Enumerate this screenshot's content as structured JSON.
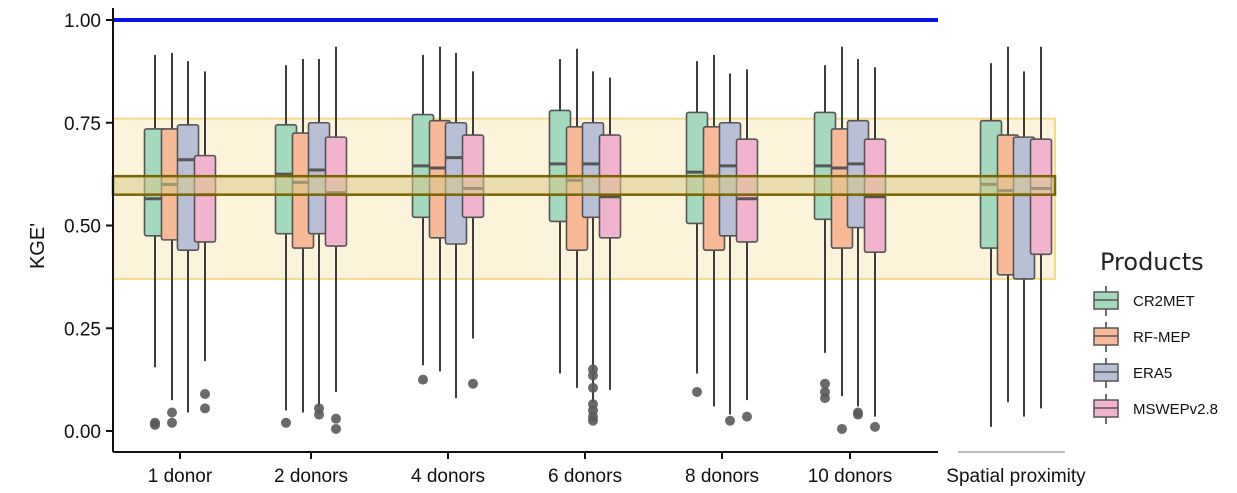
{
  "chart_data": {
    "type": "boxplot",
    "ylabel": "KGE'",
    "ylim": [
      0,
      1.05
    ],
    "yticks": [
      "0.00",
      "0.25",
      "0.50",
      "0.75",
      "1.00"
    ],
    "categories": [
      "1 donor",
      "2 donors",
      "4 donors",
      "6 donors",
      "8 donors",
      "10 donors",
      "Spatial proximity"
    ],
    "reference_line": {
      "value": 1.0,
      "color": "#0a14e6"
    },
    "bands": {
      "outer": {
        "low": 0.37,
        "high": 0.76,
        "fill": "#fcf3db",
        "stroke": "#f5d98a"
      },
      "inner": {
        "low": 0.575,
        "high": 0.62,
        "fill": "#d8c98c",
        "stroke": "#7a6500"
      }
    },
    "legend": {
      "title": "Products",
      "position": "right",
      "items": [
        {
          "label": "CR2MET",
          "color": "#a3d9bd"
        },
        {
          "label": "RF-MEP",
          "color": "#f8b996"
        },
        {
          "label": "ERA5",
          "color": "#b9bfd6"
        },
        {
          "label": "MSWEPv2.8",
          "color": "#f1b3cd"
        }
      ]
    },
    "series": [
      {
        "name": "CR2MET",
        "boxes": [
          {
            "whisker_low": 0.155,
            "q1": 0.475,
            "median": 0.565,
            "q3": 0.735,
            "whisker_high": 0.915,
            "outliers": [
              0.02,
              0.015
            ]
          },
          {
            "whisker_low": 0.05,
            "q1": 0.48,
            "median": 0.625,
            "q3": 0.745,
            "whisker_high": 0.89,
            "outliers": [
              0.02
            ]
          },
          {
            "whisker_low": 0.16,
            "q1": 0.52,
            "median": 0.645,
            "q3": 0.77,
            "whisker_high": 0.915,
            "outliers": [
              0.125
            ]
          },
          {
            "whisker_low": 0.14,
            "q1": 0.51,
            "median": 0.65,
            "q3": 0.78,
            "whisker_high": 0.905,
            "outliers": []
          },
          {
            "whisker_low": 0.14,
            "q1": 0.505,
            "median": 0.63,
            "q3": 0.775,
            "whisker_high": 0.9,
            "outliers": [
              0.095
            ]
          },
          {
            "whisker_low": 0.19,
            "q1": 0.515,
            "median": 0.645,
            "q3": 0.775,
            "whisker_high": 0.89,
            "outliers": [
              0.115,
              0.095,
              0.08
            ]
          },
          {
            "whisker_low": 0.01,
            "q1": 0.445,
            "median": 0.6,
            "q3": 0.755,
            "whisker_high": 0.895,
            "outliers": []
          }
        ]
      },
      {
        "name": "RF-MEP",
        "boxes": [
          {
            "whisker_low": 0.075,
            "q1": 0.465,
            "median": 0.6,
            "q3": 0.735,
            "whisker_high": 0.92,
            "outliers": [
              0.045,
              0.02
            ]
          },
          {
            "whisker_low": 0.045,
            "q1": 0.445,
            "median": 0.605,
            "q3": 0.725,
            "whisker_high": 0.905,
            "outliers": []
          },
          {
            "whisker_low": 0.145,
            "q1": 0.47,
            "median": 0.64,
            "q3": 0.755,
            "whisker_high": 0.935,
            "outliers": []
          },
          {
            "whisker_low": 0.105,
            "q1": 0.44,
            "median": 0.61,
            "q3": 0.74,
            "whisker_high": 0.93,
            "outliers": []
          },
          {
            "whisker_low": 0.06,
            "q1": 0.44,
            "median": 0.62,
            "q3": 0.74,
            "whisker_high": 0.915,
            "outliers": []
          },
          {
            "whisker_low": 0.085,
            "q1": 0.445,
            "median": 0.64,
            "q3": 0.735,
            "whisker_high": 0.935,
            "outliers": [
              0.005
            ]
          },
          {
            "whisker_low": 0.07,
            "q1": 0.38,
            "median": 0.585,
            "q3": 0.72,
            "whisker_high": 0.935,
            "outliers": []
          }
        ]
      },
      {
        "name": "ERA5",
        "boxes": [
          {
            "whisker_low": 0.045,
            "q1": 0.44,
            "median": 0.66,
            "q3": 0.745,
            "whisker_high": 0.9,
            "outliers": []
          },
          {
            "whisker_low": 0.06,
            "q1": 0.48,
            "median": 0.635,
            "q3": 0.75,
            "whisker_high": 0.905,
            "outliers": [
              0.055,
              0.04
            ]
          },
          {
            "whisker_low": 0.08,
            "q1": 0.455,
            "median": 0.665,
            "q3": 0.75,
            "whisker_high": 0.92,
            "outliers": []
          },
          {
            "whisker_low": 0.07,
            "q1": 0.52,
            "median": 0.65,
            "q3": 0.75,
            "whisker_high": 0.875,
            "outliers": [
              0.15,
              0.135,
              0.105,
              0.065,
              0.05,
              0.035,
              0.025
            ]
          },
          {
            "whisker_low": 0.04,
            "q1": 0.475,
            "median": 0.645,
            "q3": 0.75,
            "whisker_high": 0.87,
            "outliers": [
              0.025
            ]
          },
          {
            "whisker_low": 0.06,
            "q1": 0.495,
            "median": 0.65,
            "q3": 0.755,
            "whisker_high": 0.905,
            "outliers": [
              0.045,
              0.04
            ]
          },
          {
            "whisker_low": 0.035,
            "q1": 0.37,
            "median": 0.575,
            "q3": 0.715,
            "whisker_high": 0.875,
            "outliers": []
          }
        ]
      },
      {
        "name": "MSWEPv2.8",
        "boxes": [
          {
            "whisker_low": 0.17,
            "q1": 0.46,
            "median": 0.575,
            "q3": 0.67,
            "whisker_high": 0.875,
            "outliers": [
              0.09,
              0.055
            ]
          },
          {
            "whisker_low": 0.095,
            "q1": 0.45,
            "median": 0.58,
            "q3": 0.715,
            "whisker_high": 0.935,
            "outliers": [
              0.03,
              0.005
            ]
          },
          {
            "whisker_low": 0.225,
            "q1": 0.52,
            "median": 0.59,
            "q3": 0.72,
            "whisker_high": 0.875,
            "outliers": [
              0.115
            ]
          },
          {
            "whisker_low": 0.1,
            "q1": 0.47,
            "median": 0.57,
            "q3": 0.72,
            "whisker_high": 0.86,
            "outliers": []
          },
          {
            "whisker_low": 0.075,
            "q1": 0.46,
            "median": 0.565,
            "q3": 0.71,
            "whisker_high": 0.88,
            "outliers": [
              0.035
            ]
          },
          {
            "whisker_low": 0.035,
            "q1": 0.435,
            "median": 0.57,
            "q3": 0.71,
            "whisker_high": 0.885,
            "outliers": [
              0.01
            ]
          },
          {
            "whisker_low": 0.055,
            "q1": 0.43,
            "median": 0.59,
            "q3": 0.71,
            "whisker_high": 0.935,
            "outliers": []
          }
        ]
      }
    ]
  }
}
